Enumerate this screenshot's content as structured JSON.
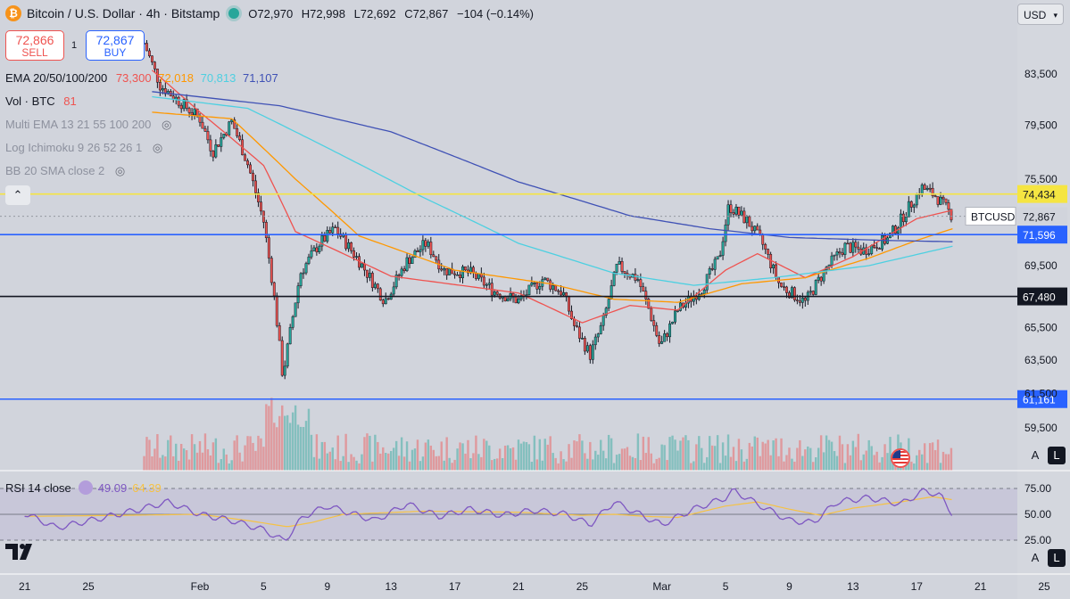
{
  "header": {
    "symbol_title": "Bitcoin / U.S. Dollar · 4h · Bitstamp",
    "open": "O72,970",
    "high": "H72,998",
    "low": "L72,692",
    "close": "C72,867",
    "change": "−104 (−0.14%)"
  },
  "trade": {
    "sell_price": "72,866",
    "sell_label": "SELL",
    "buy_price": "72,867",
    "buy_label": "BUY",
    "spread": "1"
  },
  "indicators": {
    "ema_label": "EMA 20/50/100/200",
    "ema_vals": [
      "73,300",
      "72,018",
      "70,813",
      "71,107"
    ],
    "vol_label": "Vol · BTC",
    "vol_val": "81",
    "multi_ema": "Multi EMA 13 21 55 100 200",
    "ichimoku": "Log Ichimoku 9 26 52 26 1",
    "bb": "BB 20 SMA close 2"
  },
  "rsi": {
    "label": "RSI 14 close",
    "value": "49.09",
    "ma_value": "64.39"
  },
  "currency": "USD",
  "scale_buttons": [
    "A",
    "L"
  ],
  "colors": {
    "ema20": "#ef5350",
    "ema50": "#ff9800",
    "ema100": "#4dd0e1",
    "ema200": "#3f51b5",
    "up": "#26a69a",
    "down": "#ef5350",
    "level_yellow": "#f5e542",
    "level_blue": "#2962ff",
    "rsi_line": "#7e57c2",
    "rsi_ma": "#f6c244"
  },
  "chart_data": {
    "type": "candlestick",
    "title": "Bitcoin / U.S. Dollar · 4h · Bitstamp",
    "price_ticks": [
      "83,500",
      "79,500",
      "75,500",
      "69,500",
      "65,500",
      "63,500",
      "61,500",
      "59,500"
    ],
    "price_tick_values": [
      83500,
      79500,
      75500,
      69500,
      65500,
      63500,
      61500,
      59500
    ],
    "x_ticks": [
      "21",
      "25",
      "Feb",
      "5",
      "9",
      "13",
      "17",
      "21",
      "25",
      "Mar",
      "5",
      "9",
      "13",
      "17",
      "21",
      "25"
    ],
    "x_tick_days": [
      -11,
      -7,
      0,
      4,
      8,
      12,
      16,
      20,
      24,
      29,
      33,
      37,
      41,
      45,
      49,
      53
    ],
    "horizontal_levels": [
      {
        "label": "74,434",
        "value": 74434,
        "color": "yellow"
      },
      {
        "label": "71,596",
        "value": 71596,
        "color": "blue"
      },
      {
        "label": "67,480",
        "value": 67480,
        "color": "black"
      },
      {
        "label": "61,161",
        "value": 61161,
        "color": "blue"
      }
    ],
    "last_price": {
      "label": "72,867",
      "value": 72867,
      "symbol": "BTCUSD"
    },
    "price_path_anchors": [
      [
        -3.5,
        86000
      ],
      [
        -2.5,
        82600
      ],
      [
        0,
        80000
      ],
      [
        0.8,
        77500
      ],
      [
        2,
        79800
      ],
      [
        3,
        76600
      ],
      [
        4,
        72500
      ],
      [
        4.6,
        68000
      ],
      [
        5.2,
        62500
      ],
      [
        5.6,
        64800
      ],
      [
        6.3,
        69000
      ],
      [
        7.5,
        71000
      ],
      [
        8.5,
        72000
      ],
      [
        10,
        69800
      ],
      [
        11.6,
        67200
      ],
      [
        13,
        69800
      ],
      [
        14.2,
        71000
      ],
      [
        15.3,
        69200
      ],
      [
        17,
        69000
      ],
      [
        18.5,
        67800
      ],
      [
        20,
        67200
      ],
      [
        21.5,
        68600
      ],
      [
        22.8,
        67700
      ],
      [
        23.5,
        65600
      ],
      [
        24.5,
        63800
      ],
      [
        25.3,
        65800
      ],
      [
        26.2,
        69500
      ],
      [
        27.5,
        68600
      ],
      [
        28.2,
        66600
      ],
      [
        28.9,
        64300
      ],
      [
        30,
        66600
      ],
      [
        31.5,
        68000
      ],
      [
        32.6,
        70000
      ],
      [
        33.2,
        73600
      ],
      [
        34.4,
        72500
      ],
      [
        35.3,
        71000
      ],
      [
        36.4,
        68200
      ],
      [
        38,
        67100
      ],
      [
        39.3,
        69300
      ],
      [
        40.5,
        70800
      ],
      [
        41.6,
        70500
      ],
      [
        43.2,
        71300
      ],
      [
        44,
        72600
      ],
      [
        45.3,
        74900
      ],
      [
        46.2,
        74300
      ],
      [
        47.3,
        72800
      ]
    ],
    "ema20_anchors": [
      [
        -3,
        83800
      ],
      [
        0,
        80500
      ],
      [
        4,
        76500
      ],
      [
        6,
        71800
      ],
      [
        8,
        70800
      ],
      [
        12,
        68800
      ],
      [
        20,
        67700
      ],
      [
        24,
        65800
      ],
      [
        27,
        66900
      ],
      [
        30,
        66600
      ],
      [
        33,
        69200
      ],
      [
        35,
        70300
      ],
      [
        38,
        68700
      ],
      [
        41,
        70100
      ],
      [
        45,
        72700
      ],
      [
        47.3,
        73300
      ]
    ],
    "ema50_anchors": [
      [
        -3,
        80500
      ],
      [
        2,
        80000
      ],
      [
        6,
        75500
      ],
      [
        10,
        71500
      ],
      [
        16,
        69200
      ],
      [
        22,
        68300
      ],
      [
        26,
        67300
      ],
      [
        30,
        67100
      ],
      [
        34,
        68300
      ],
      [
        38,
        68700
      ],
      [
        42,
        70000
      ],
      [
        45,
        71200
      ],
      [
        47.3,
        72018
      ]
    ],
    "ema100_anchors": [
      [
        -3,
        81700
      ],
      [
        3,
        80800
      ],
      [
        8,
        77800
      ],
      [
        14,
        74200
      ],
      [
        20,
        71000
      ],
      [
        26,
        69000
      ],
      [
        31,
        68200
      ],
      [
        36,
        68700
      ],
      [
        42,
        69500
      ],
      [
        47.3,
        70813
      ]
    ],
    "ema200_anchors": [
      [
        -3,
        82100
      ],
      [
        5,
        81000
      ],
      [
        12,
        79000
      ],
      [
        20,
        75300
      ],
      [
        27,
        72900
      ],
      [
        32,
        72000
      ],
      [
        37,
        71400
      ],
      [
        43,
        71200
      ],
      [
        47.3,
        71107
      ]
    ],
    "rsi": {
      "levels": [
        75.0,
        50.0,
        25.0
      ],
      "level_labels": [
        "75.00",
        "50.00",
        "25.00"
      ],
      "line_anchors": [
        [
          -11,
          51
        ],
        [
          -9,
          37
        ],
        [
          -6,
          47
        ],
        [
          -4,
          54
        ],
        [
          -2,
          62
        ],
        [
          0,
          50
        ],
        [
          2,
          44
        ],
        [
          4,
          35
        ],
        [
          5.3,
          24
        ],
        [
          6.5,
          48
        ],
        [
          8,
          58
        ],
        [
          11,
          44
        ],
        [
          13,
          60
        ],
        [
          15,
          48
        ],
        [
          17,
          55
        ],
        [
          19,
          49
        ],
        [
          21,
          54
        ],
        [
          23,
          50
        ],
        [
          24.5,
          40
        ],
        [
          26,
          62
        ],
        [
          28,
          47
        ],
        [
          29,
          40
        ],
        [
          31,
          55
        ],
        [
          33,
          66
        ],
        [
          33.5,
          73
        ],
        [
          35,
          60
        ],
        [
          37,
          44
        ],
        [
          38.5,
          42
        ],
        [
          40,
          62
        ],
        [
          42,
          66
        ],
        [
          44,
          60
        ],
        [
          45.5,
          73
        ],
        [
          46.5,
          68
        ],
        [
          47.3,
          49
        ]
      ],
      "ma_anchors": [
        [
          -11,
          48
        ],
        [
          -5,
          49
        ],
        [
          0,
          50
        ],
        [
          3,
          44
        ],
        [
          5.5,
          38
        ],
        [
          7,
          42
        ],
        [
          9,
          50
        ],
        [
          14,
          53
        ],
        [
          20,
          52
        ],
        [
          24,
          49
        ],
        [
          26,
          50
        ],
        [
          28,
          48
        ],
        [
          30,
          47
        ],
        [
          33,
          58
        ],
        [
          35,
          62
        ],
        [
          37,
          55
        ],
        [
          39,
          49
        ],
        [
          41,
          56
        ],
        [
          44,
          62
        ],
        [
          46,
          67
        ],
        [
          47.3,
          64
        ]
      ]
    }
  }
}
